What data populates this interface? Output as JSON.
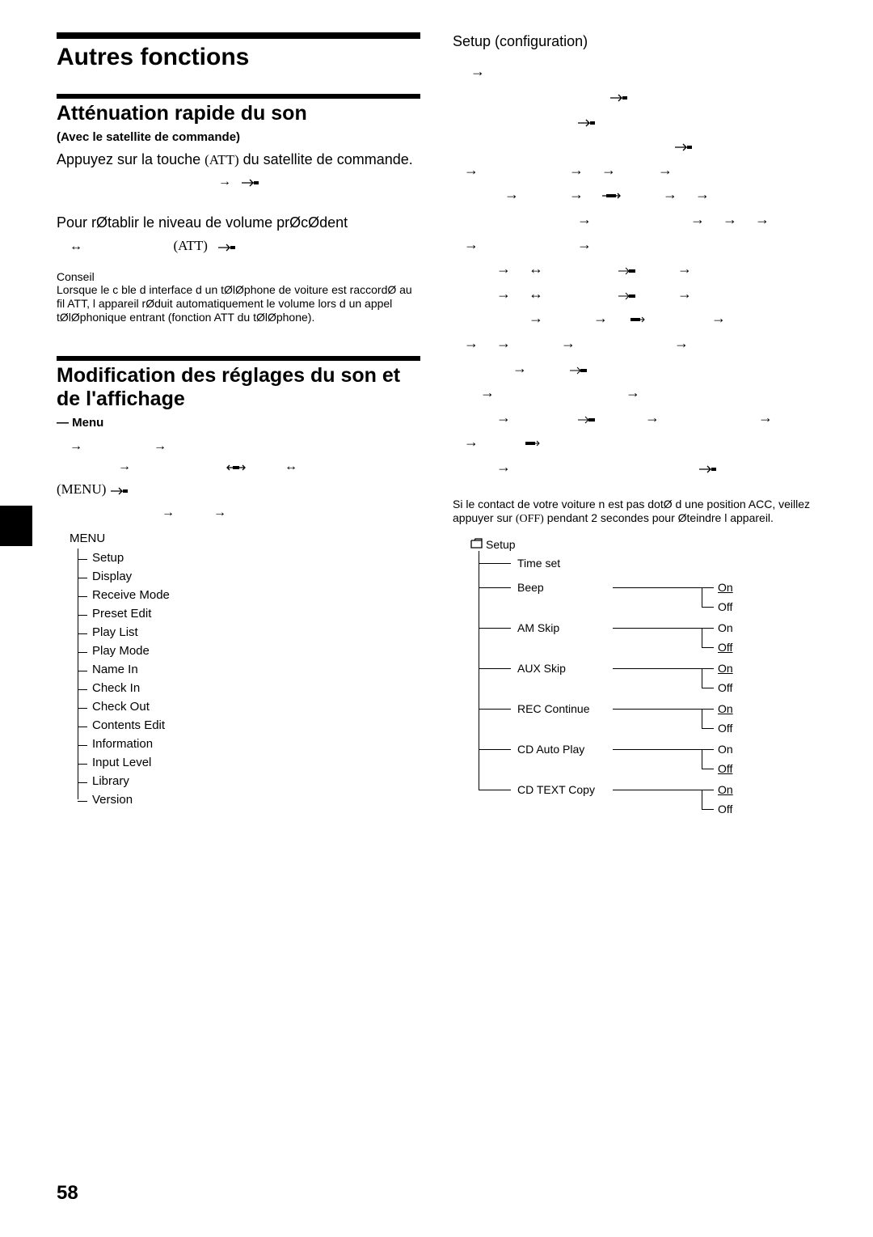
{
  "pageNumber": "58",
  "left": {
    "mainHeading": "Autres fonctions",
    "sec1_heading": "Atténuation rapide du son",
    "sec1_sub": "(Avec le satellite de commande)",
    "sec1_p1a": "Appuyez sur la touche ",
    "sec1_p1_btn": "(ATT)",
    "sec1_p1b": " du satellite de commande.",
    "sec1_p2": "Pour rØtablir le niveau de volume prØcØdent",
    "sec1_att2": "(ATT)",
    "sec1_tip_label": "Conseil",
    "sec1_tip_body": "Lorsque le c ble d interface d un tØlØphone de voiture est raccordØ au fil ATT, l appareil rØduit automatiquement le volume lors d un appel tØlØphonique entrant (fonction ATT du tØlØphone).",
    "sec2_heading": "Modification des réglages du son et de l'affichage",
    "sec2_menu": "— Menu",
    "sec2_menu_btn": "(MENU)",
    "menu_root": "MENU",
    "menu_items": [
      "Setup",
      "Display",
      "Receive Mode",
      "Preset Edit",
      "Play List",
      "Play Mode",
      "Name In",
      "Check In",
      "Check Out",
      "Contents Edit",
      "Information",
      "Input Level",
      "Library",
      "Version"
    ]
  },
  "right": {
    "setup_heading": "Setup (configuration)",
    "note_a": "Si le contact de votre voiture n est pas dotØ d une position ACC, veillez   appuyer sur ",
    "note_off": "(OFF)",
    "note_b": " pendant 2 secondes pour Øteindre l appareil.",
    "setup_root": "Setup",
    "setup_rows": [
      {
        "label": "Time set",
        "opts": null
      },
      {
        "label": "Beep",
        "on": "On",
        "off": "Off",
        "default": "on"
      },
      {
        "label": "AM Skip",
        "on": "On",
        "off": "Off",
        "default": "off"
      },
      {
        "label": "AUX Skip",
        "on": "On",
        "off": "Off",
        "default": "on"
      },
      {
        "label": "REC Continue",
        "on": "On",
        "off": "Off",
        "default": "on"
      },
      {
        "label": "CD Auto Play",
        "on": "On",
        "off": "Off",
        "default": "off"
      },
      {
        "label": "CD TEXT Copy",
        "on": "On",
        "off": "Off",
        "default": "on"
      }
    ]
  },
  "colors": {
    "text": "#000000",
    "bg": "#ffffff"
  }
}
